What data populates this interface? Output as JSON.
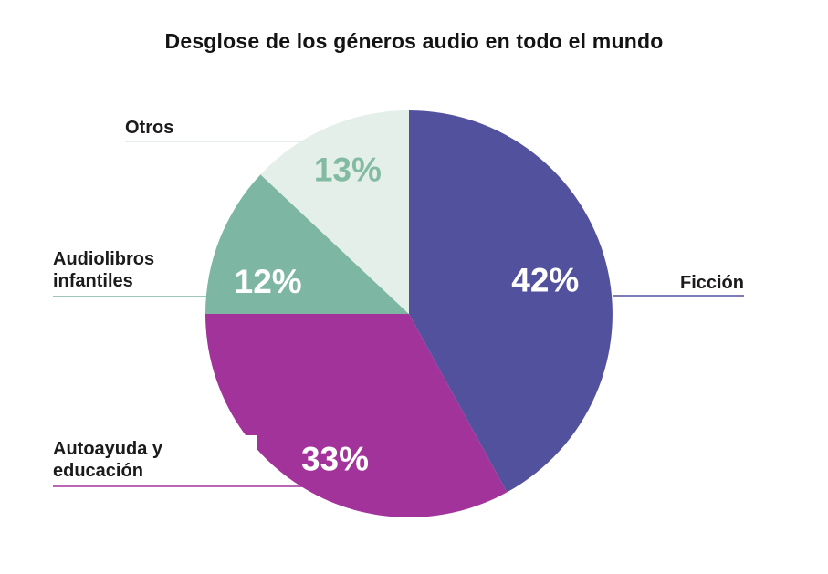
{
  "page": {
    "background_color": "#FFFFFF"
  },
  "chart_data": {
    "type": "pie",
    "title": "Desglose de los géneros audio en todo el mundo",
    "categories": [
      "Ficción",
      "Autoayuda y educación",
      "Audiolibros infantiles",
      "Otros"
    ],
    "values": [
      42,
      33,
      12,
      13
    ],
    "unit": "%",
    "value_labels": [
      "42%",
      "33%",
      "12%",
      "13%"
    ],
    "slice_colors": [
      "#52519E",
      "#A2339B",
      "#7DB6A2",
      "#E4EFE9"
    ],
    "value_label_colors": [
      "#FFFFFF",
      "#FFFFFF",
      "#FFFFFF",
      "#82BAA4"
    ],
    "leader_line_colors": [
      "#52519E",
      "#A2339B",
      "#7DB6A2",
      "#DCE7E1"
    ],
    "start_angle_deg": 0,
    "direction": "clockwise",
    "legend_position": "callout-labels",
    "title_color": "#131313",
    "label_text_color": "#1B1B1B"
  },
  "labels": {
    "ficcion": "Ficción",
    "autoayuda": "Autoayuda y educación",
    "audiolibros": "Audiolibros infantiles",
    "otros": "Otros"
  }
}
